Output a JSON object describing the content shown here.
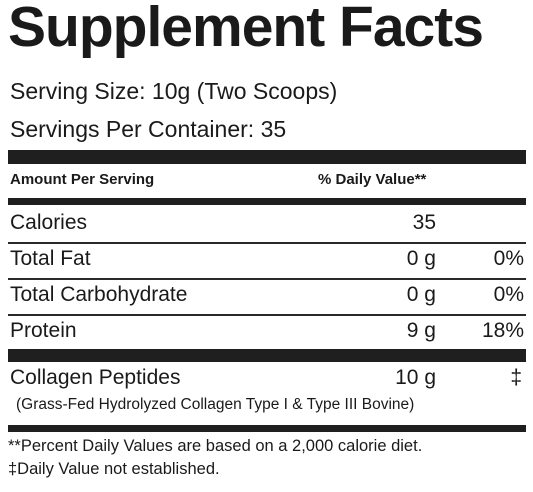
{
  "title": "Supplement Facts",
  "serving_size": "Serving Size: 10g (Two Scoops)",
  "servings_per_container": "Servings Per Container: 35",
  "header": {
    "amount_per_serving": "Amount Per Serving",
    "daily_value": "% Daily Value**"
  },
  "nutrients": [
    {
      "name": "Calories",
      "amount": "35",
      "dv": ""
    },
    {
      "name": "Total Fat",
      "amount": "0 g",
      "dv": "0%"
    },
    {
      "name": "Total Carbohydrate",
      "amount": "0 g",
      "dv": "0%"
    },
    {
      "name": "Protein",
      "amount": "9 g",
      "dv": "18%"
    }
  ],
  "ingredient": {
    "name": "Collagen Peptides",
    "amount": "10 g",
    "dv": "‡",
    "description": "(Grass-Fed Hydrolyzed Collagen Type I & Type III Bovine)"
  },
  "footnotes": [
    "**Percent Daily Values are based on a 2,000 calorie diet.",
    "‡Daily Value not established."
  ]
}
